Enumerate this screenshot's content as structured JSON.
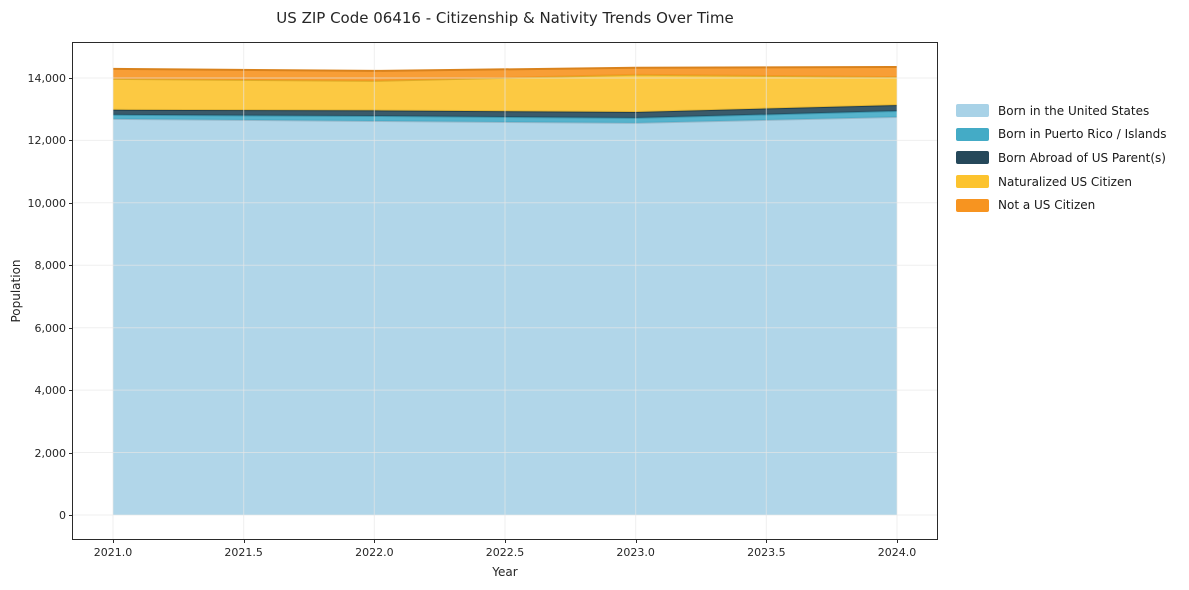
{
  "chart_data": {
    "type": "area",
    "stacked": true,
    "title": "US ZIP Code 06416 - Citizenship & Nativity Trends Over Time",
    "xlabel": "Year",
    "ylabel": "Population",
    "x": [
      2021,
      2022,
      2023,
      2024
    ],
    "series": [
      {
        "name": "Born in the United States",
        "color": "#a8d2e7",
        "values": [
          12690,
          12620,
          12560,
          12750
        ]
      },
      {
        "name": "Born in Puerto Rico / Islands",
        "color": "#44abc6",
        "values": [
          130,
          160,
          160,
          190
        ]
      },
      {
        "name": "Born Abroad of US Parent(s)",
        "color": "#25485a",
        "values": [
          160,
          180,
          190,
          190
        ]
      },
      {
        "name": "Naturalized US Citizen",
        "color": "#fcc32e",
        "values": [
          990,
          945,
          1190,
          900
        ]
      },
      {
        "name": "Not a US Citizen",
        "color": "#f79420",
        "values": [
          320,
          320,
          225,
          320
        ]
      }
    ],
    "xticks": [
      2021.0,
      2021.5,
      2022.0,
      2022.5,
      2023.0,
      2023.5,
      2024.0
    ],
    "xtick_labels": [
      "2021.0",
      "2021.5",
      "2022.0",
      "2022.5",
      "2023.0",
      "2023.5",
      "2024.0"
    ],
    "yticks": [
      0,
      2000,
      4000,
      6000,
      8000,
      10000,
      12000,
      14000
    ],
    "ytick_labels": [
      "0",
      "2,000",
      "4,000",
      "6,000",
      "8,000",
      "10,000",
      "12,000",
      "14,000"
    ],
    "xlim": [
      2020.847,
      2024.153
    ],
    "ylim": [
      -770,
      15120
    ],
    "grid": true,
    "legend_position": "right-outside",
    "fill_opacity": 0.9,
    "grid_color": "#e6e6e6",
    "spine_color": "#2a2a2a",
    "text_color": "#262626"
  }
}
